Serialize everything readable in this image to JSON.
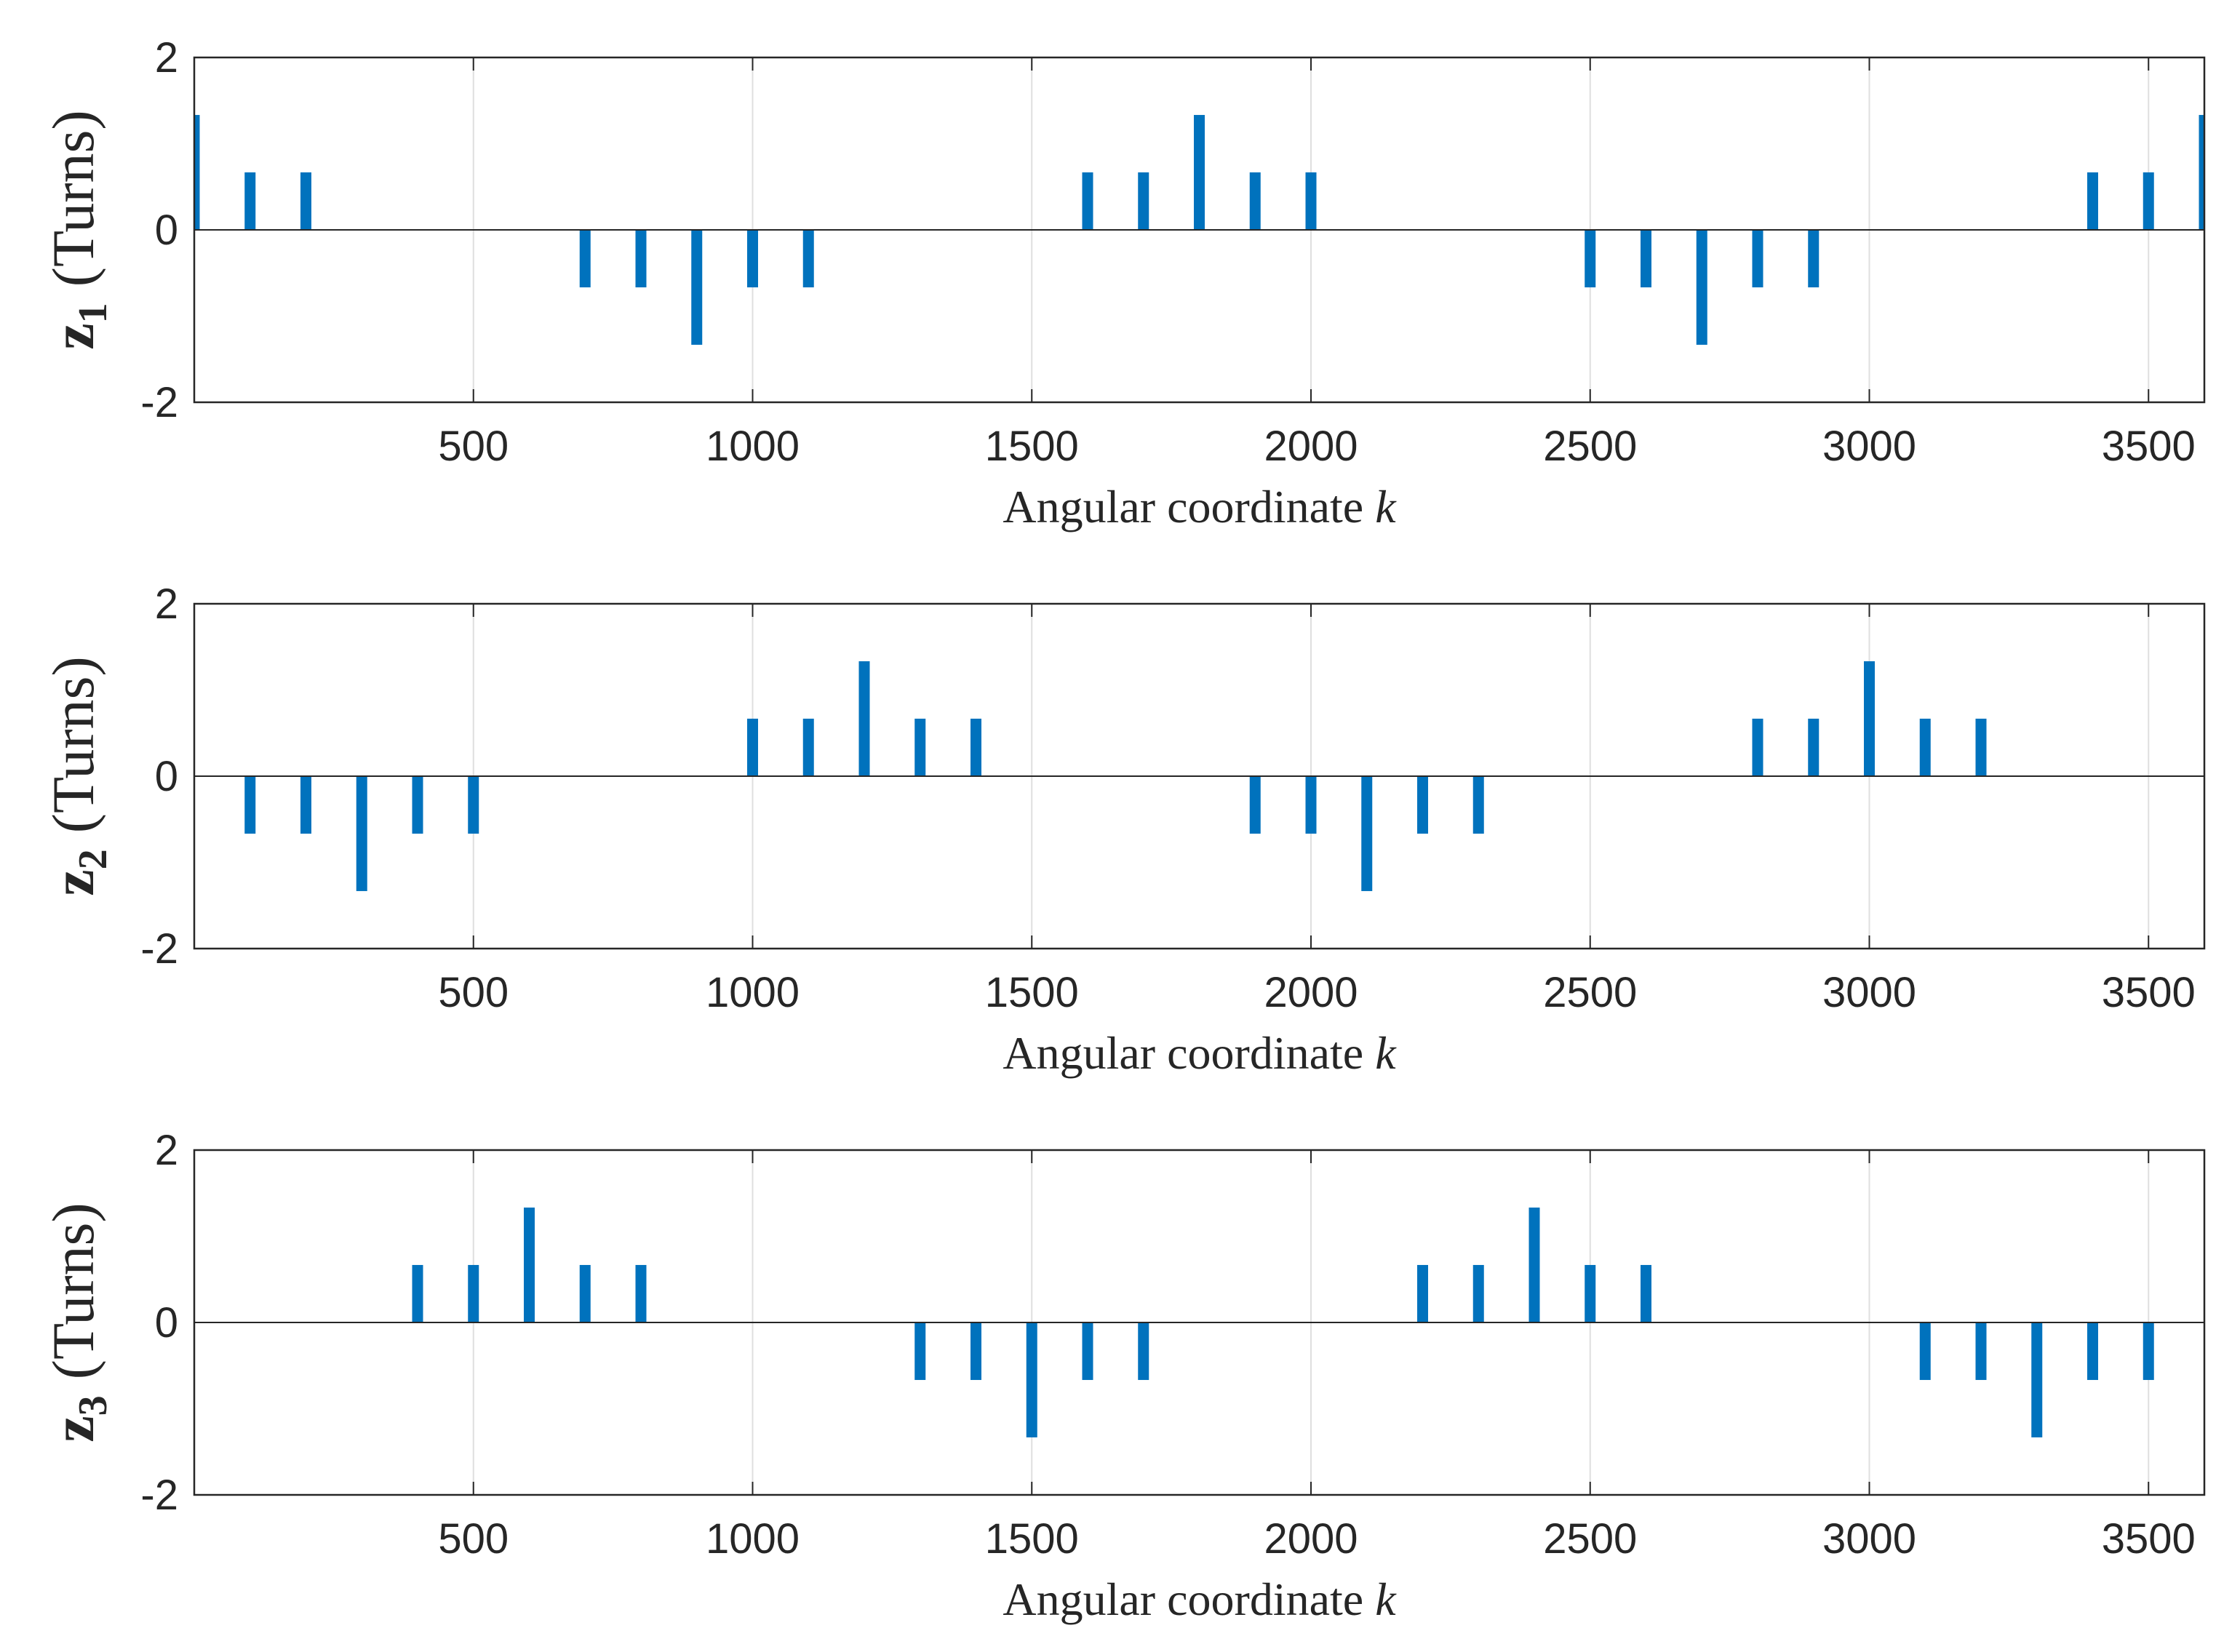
{
  "chart_data": [
    {
      "type": "bar",
      "id": "z1",
      "title": "",
      "ylabel": {
        "var": "z",
        "sub": "1",
        "unit": "(Turns)"
      },
      "xlabel": {
        "text": "Angular coordinate ",
        "var": "k"
      },
      "xlim": [
        0,
        3600
      ],
      "ylim": [
        -2,
        2
      ],
      "xticks": [
        "500",
        "1000",
        "1500",
        "2000",
        "2500",
        "3000",
        "3500"
      ],
      "yticks": [
        "-2",
        "0",
        "2"
      ],
      "grid": "vertical",
      "x": [
        0,
        100,
        200,
        700,
        800,
        900,
        1000,
        1100,
        1600,
        1700,
        1800,
        1900,
        2000,
        2500,
        2600,
        2700,
        2800,
        2900,
        3400,
        3500,
        3600
      ],
      "values": [
        1.333,
        0.667,
        0.667,
        -0.667,
        -0.667,
        -1.333,
        -0.667,
        -0.667,
        0.667,
        0.667,
        1.333,
        0.667,
        0.667,
        -0.667,
        -0.667,
        -1.333,
        -0.667,
        -0.667,
        0.667,
        0.667,
        1.333
      ]
    },
    {
      "type": "bar",
      "id": "z2",
      "title": "",
      "ylabel": {
        "var": "z",
        "sub": "2",
        "unit": "(Turns)"
      },
      "xlabel": {
        "text": "Angular coordinate ",
        "var": "k"
      },
      "xlim": [
        0,
        3600
      ],
      "ylim": [
        -2,
        2
      ],
      "xticks": [
        "500",
        "1000",
        "1500",
        "2000",
        "2500",
        "3000",
        "3500"
      ],
      "yticks": [
        "-2",
        "0",
        "2"
      ],
      "grid": "vertical",
      "x": [
        100,
        200,
        300,
        400,
        500,
        1000,
        1100,
        1200,
        1300,
        1400,
        1900,
        2000,
        2100,
        2200,
        2300,
        2800,
        2900,
        3000,
        3100,
        3200
      ],
      "values": [
        -0.667,
        -0.667,
        -1.333,
        -0.667,
        -0.667,
        0.667,
        0.667,
        1.333,
        0.667,
        0.667,
        -0.667,
        -0.667,
        -1.333,
        -0.667,
        -0.667,
        0.667,
        0.667,
        1.333,
        0.667,
        0.667
      ]
    },
    {
      "type": "bar",
      "id": "z3",
      "title": "",
      "ylabel": {
        "var": "z",
        "sub": "3",
        "unit": "(Turns)"
      },
      "xlabel": {
        "text": "Angular coordinate ",
        "var": "k"
      },
      "xlim": [
        0,
        3600
      ],
      "ylim": [
        -2,
        2
      ],
      "xticks": [
        "500",
        "1000",
        "1500",
        "2000",
        "2500",
        "3000",
        "3500"
      ],
      "yticks": [
        "-2",
        "0",
        "2"
      ],
      "grid": "vertical",
      "x": [
        400,
        500,
        600,
        700,
        800,
        1300,
        1400,
        1500,
        1600,
        1700,
        2200,
        2300,
        2400,
        2500,
        2600,
        3100,
        3200,
        3300,
        3400,
        3500
      ],
      "values": [
        0.667,
        0.667,
        1.333,
        0.667,
        0.667,
        -0.667,
        -0.667,
        -1.333,
        -0.667,
        -0.667,
        0.667,
        0.667,
        1.333,
        0.667,
        0.667,
        -0.667,
        -0.667,
        -1.333,
        -0.667,
        -0.667
      ]
    }
  ],
  "colors": {
    "bar": "#0072BD",
    "axis": "#262626",
    "grid": "#dfdfdf",
    "background": "#ffffff"
  }
}
